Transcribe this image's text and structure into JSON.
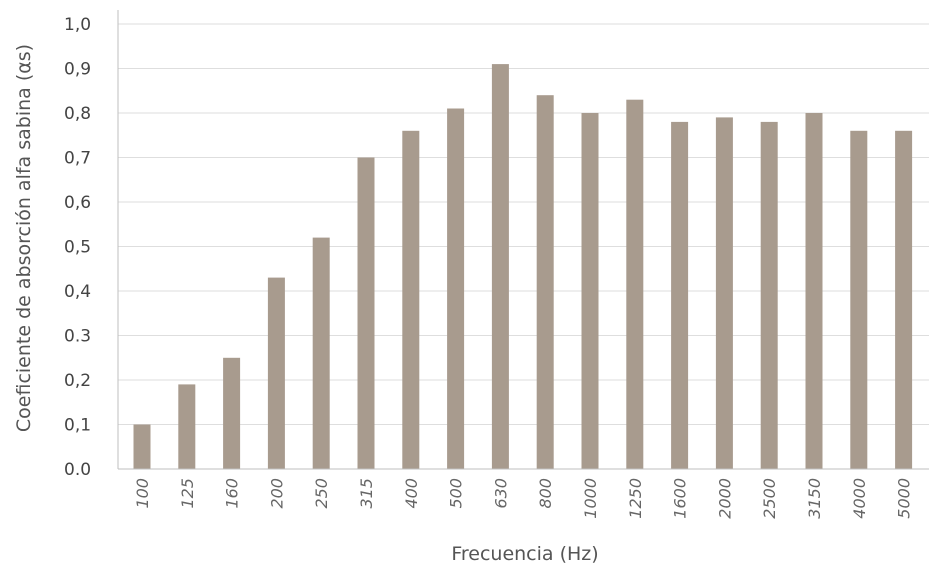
{
  "chart_data": {
    "type": "bar",
    "title": "",
    "xlabel": "Frecuencia (Hz)",
    "ylabel": "Coeficiente de absorción alfa sabina (αs)",
    "categories": [
      "100",
      "125",
      "160",
      "200",
      "250",
      "315",
      "400",
      "500",
      "630",
      "800",
      "1000",
      "1250",
      "1600",
      "2000",
      "2500",
      "3150",
      "4000",
      "5000"
    ],
    "series": [
      {
        "values": [
          0.1,
          0.19,
          0.25,
          0.43,
          0.52,
          0.7,
          0.76,
          0.81,
          0.91,
          0.84,
          0.8,
          0.83,
          0.78,
          0.79,
          0.78,
          0.8,
          0.76,
          0.76
        ]
      }
    ],
    "ylim": [
      0,
      1.0
    ],
    "yticks": [
      0.0,
      0.1,
      0.2,
      0.3,
      0.4,
      0.5,
      0.6,
      0.7,
      0.8,
      0.9,
      1.0
    ],
    "ytick_labels": [
      "0.0",
      "0,1",
      "0,2",
      "0.3",
      "0,4",
      "0,5",
      "0,6",
      "0,7",
      "0,8",
      "0,9",
      "1,0"
    ],
    "grid": true,
    "legend": "none",
    "colors": {
      "bar": "#a89b8e",
      "grid": "#dedede",
      "axis": "#bfbfbf"
    }
  }
}
